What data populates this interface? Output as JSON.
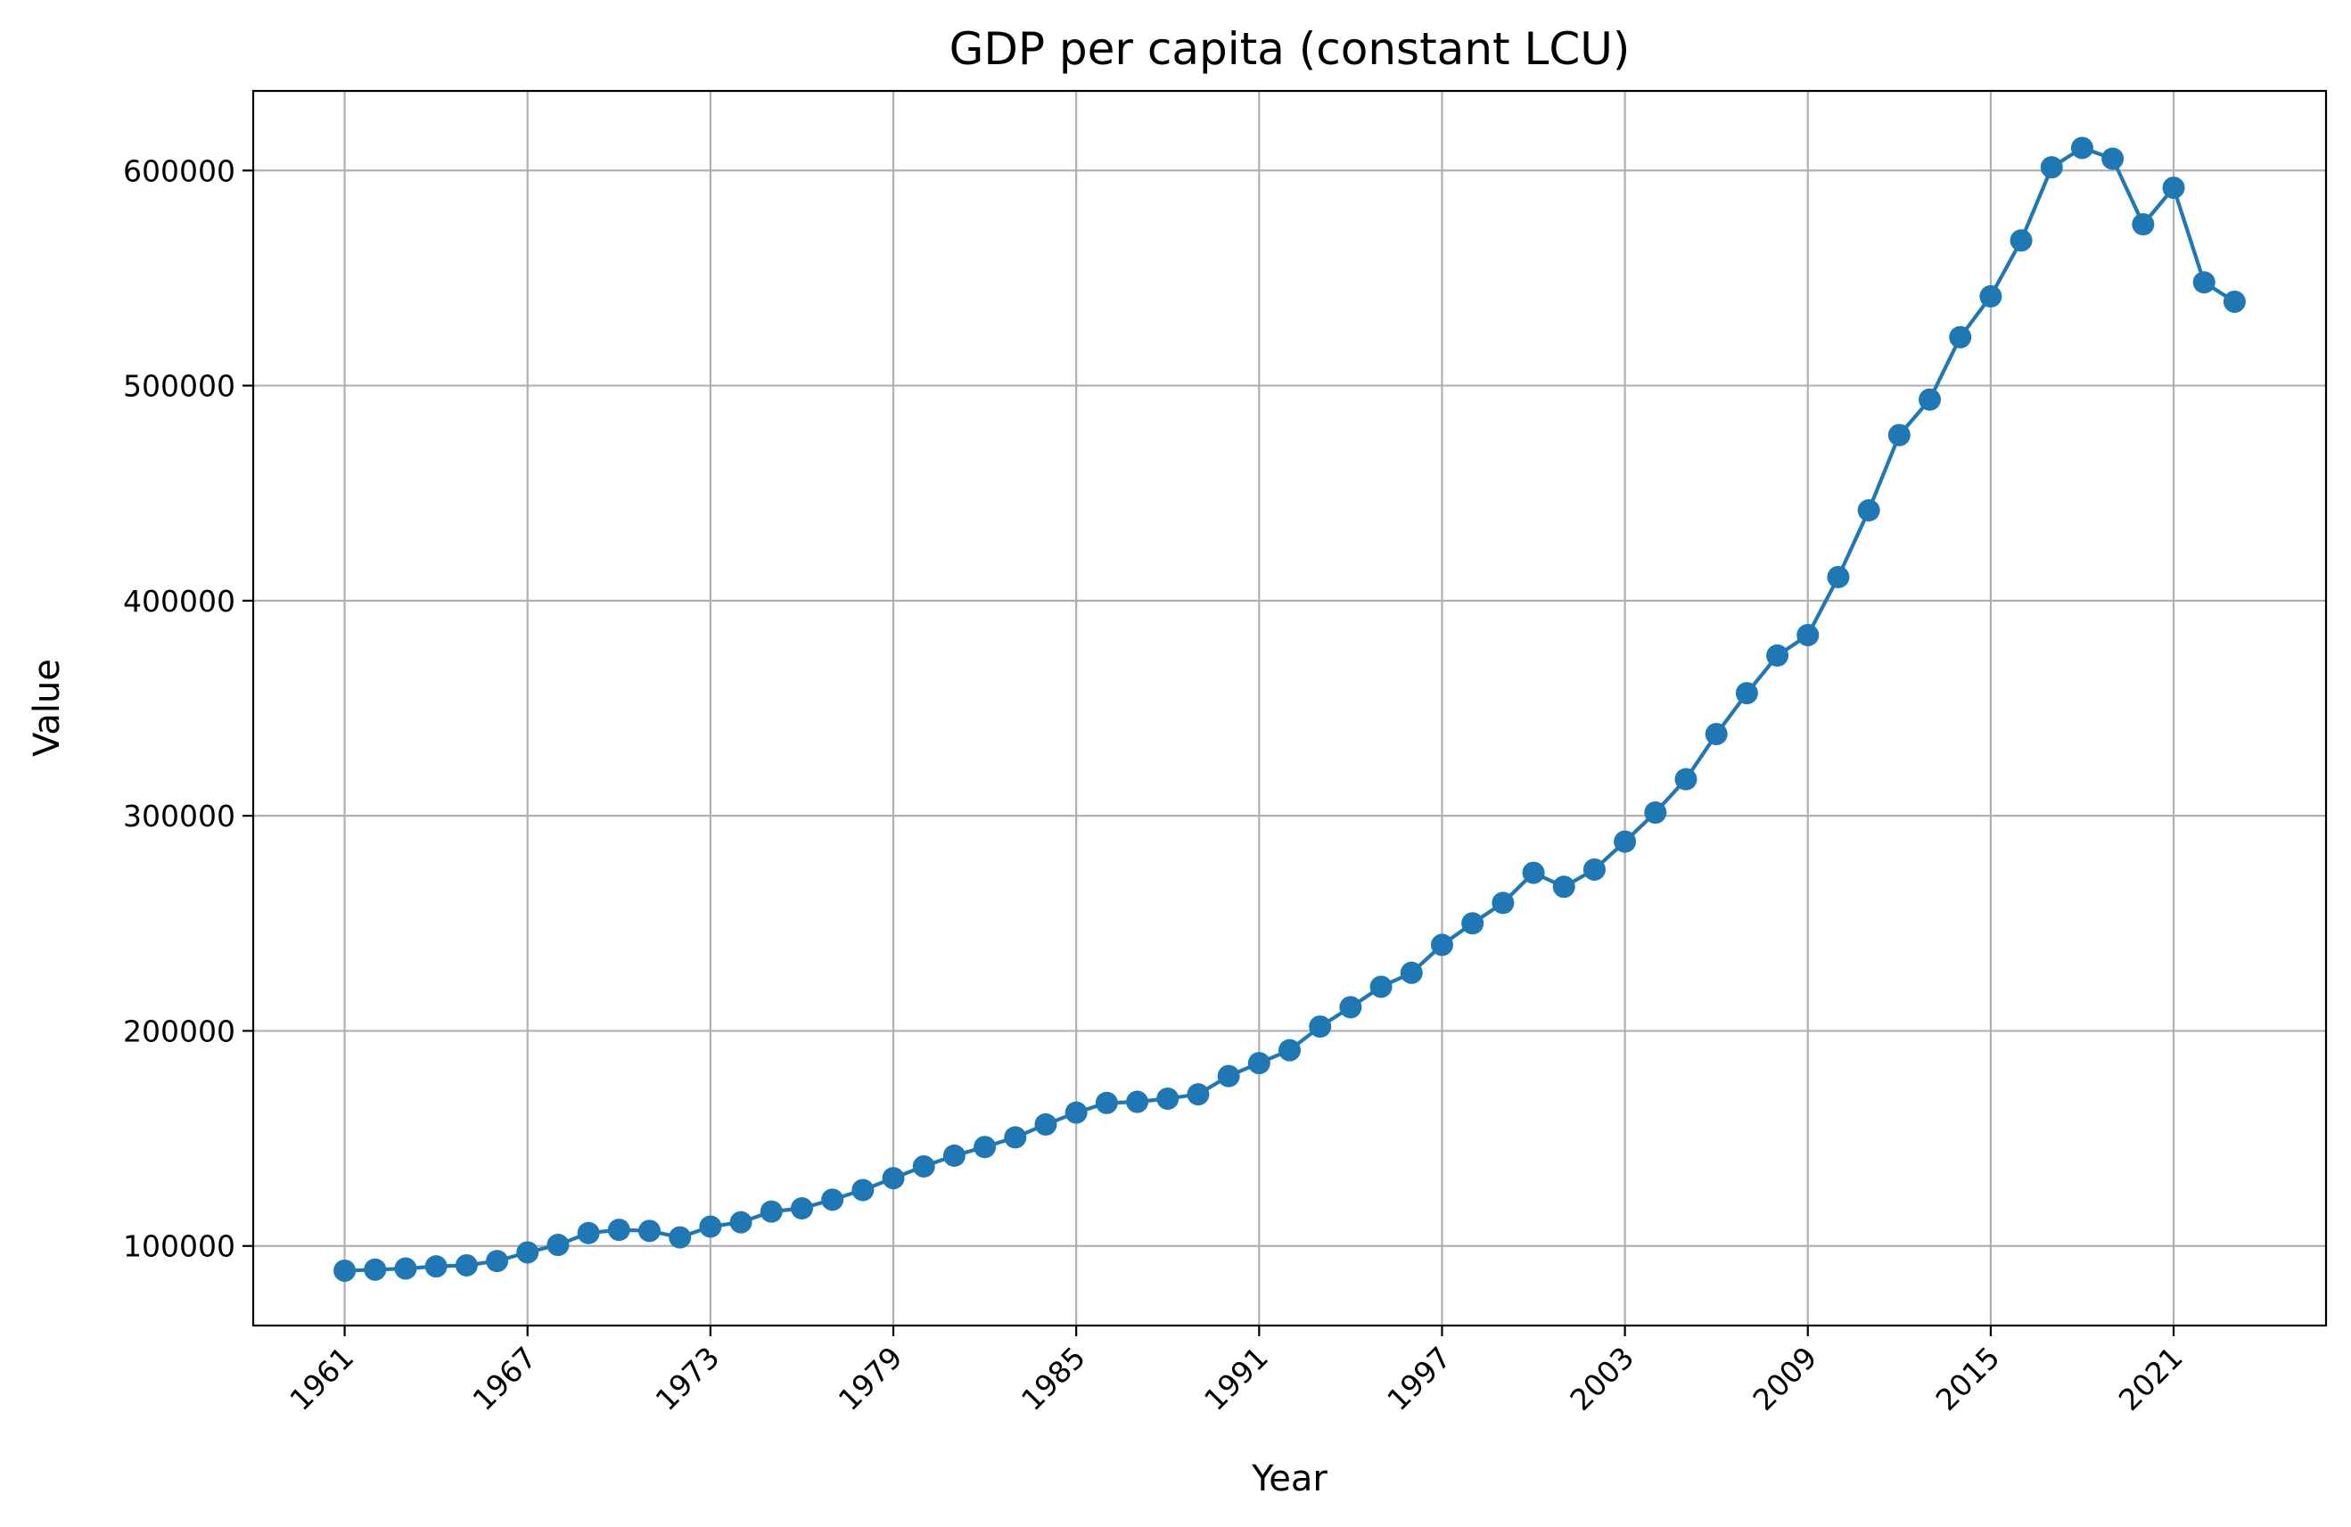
{
  "chart_data": {
    "type": "line",
    "title": "GDP per capita (constant LCU)",
    "xlabel": "Year",
    "ylabel": "Value",
    "xlim": [
      1958,
      2026
    ],
    "ylim": [
      63000,
      637000
    ],
    "grid": true,
    "color": "#1f77b4",
    "x_ticks": [
      1961,
      1967,
      1973,
      1979,
      1985,
      1991,
      1997,
      2003,
      2009,
      2015,
      2021
    ],
    "y_ticks": [
      100000,
      200000,
      300000,
      400000,
      500000,
      600000
    ],
    "series": [
      {
        "x": [
          1961,
          1962,
          1963,
          1964,
          1965,
          1966,
          1967,
          1968,
          1969,
          1970,
          1971,
          1972,
          1973,
          1974,
          1975,
          1976,
          1977,
          1978,
          1979,
          1980,
          1981,
          1982,
          1983,
          1984,
          1985,
          1986,
          1987,
          1988,
          1989,
          1990,
          1991,
          1992,
          1993,
          1994,
          1995,
          1996,
          1997,
          1998,
          1999,
          2000,
          2001,
          2002,
          2003,
          2004,
          2005,
          2006,
          2007,
          2008,
          2009,
          2010,
          2011,
          2012,
          2013,
          2014,
          2015,
          2016,
          2017,
          2018,
          2019,
          2020,
          2021,
          2022,
          2023
        ],
        "y": [
          88500,
          89000,
          89500,
          90500,
          91000,
          93000,
          97000,
          100500,
          106000,
          107500,
          107000,
          104000,
          109000,
          111000,
          116000,
          117500,
          121500,
          126000,
          131500,
          137000,
          142000,
          146000,
          150500,
          156500,
          162000,
          166500,
          167000,
          168500,
          170500,
          179000,
          185000,
          191000,
          202000,
          211000,
          220500,
          227000,
          240000,
          250000,
          259500,
          273500,
          267000,
          275000,
          288000,
          301500,
          317000,
          338000,
          357000,
          374500,
          384000,
          411000,
          442000,
          477000,
          493500,
          522500,
          541500,
          567500,
          601500,
          610500,
          605500,
          575000,
          592000,
          548000,
          539000
        ]
      }
    ]
  }
}
